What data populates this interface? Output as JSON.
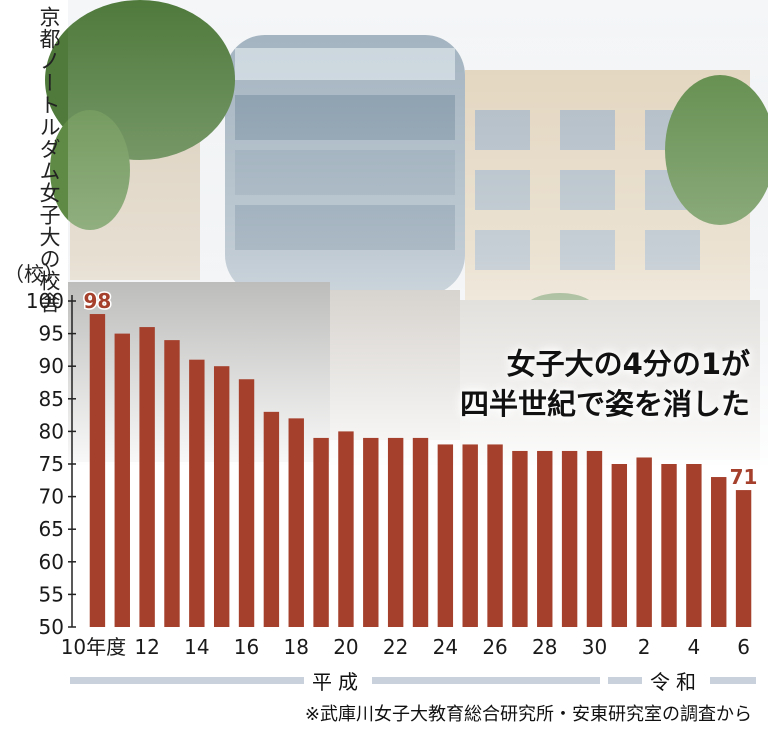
{
  "caption": "京都ノートルダム女子大の校舎",
  "headline": {
    "line1": "女子大の4分の1が",
    "line2": "四半世紀で姿を消した"
  },
  "source": "※武庫川女子大教育総合研究所・安東研究室の調査から",
  "eras": {
    "heisei": "平成",
    "reiwa": "令和"
  },
  "colors": {
    "bar": "#a5402c",
    "highlight_label": "#a5402c",
    "era_bar": "#c9d1dc"
  },
  "chart_data": {
    "type": "bar",
    "unit_label": "（校）",
    "ylim": [
      50,
      100
    ],
    "yticks": [
      100,
      95,
      90,
      85,
      80,
      75,
      70,
      65,
      60,
      55,
      50
    ],
    "categories": [
      "10年度",
      "11",
      "12",
      "13",
      "14",
      "15",
      "16",
      "17",
      "18",
      "19",
      "20",
      "21",
      "22",
      "23",
      "24",
      "25",
      "26",
      "27",
      "28",
      "29",
      "30",
      "1",
      "2",
      "3",
      "4",
      "5",
      "6"
    ],
    "xtick_labels": [
      "10年度",
      "12",
      "14",
      "16",
      "18",
      "20",
      "22",
      "24",
      "26",
      "28",
      "30",
      "2",
      "4",
      "6"
    ],
    "values": [
      98,
      95,
      96,
      94,
      91,
      90,
      88,
      83,
      82,
      79,
      80,
      79,
      79,
      79,
      78,
      78,
      78,
      77,
      77,
      77,
      77,
      75,
      76,
      75,
      75,
      73,
      71
    ],
    "annotations": [
      {
        "index": 0,
        "label": "98"
      },
      {
        "index": 26,
        "label": "71"
      }
    ]
  }
}
